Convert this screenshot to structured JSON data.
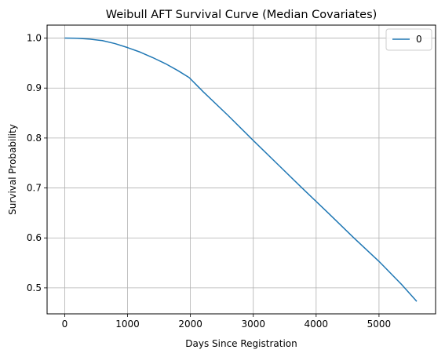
{
  "chart_data": {
    "type": "line",
    "title": "Weibull AFT Survival Curve (Median Covariates)",
    "xlabel": "Days Since Registration",
    "ylabel": "Survival Probability",
    "xlim": [
      -280,
      5900
    ],
    "ylim": [
      0.448,
      1.026
    ],
    "xticks": [
      0,
      1000,
      2000,
      3000,
      4000,
      5000
    ],
    "xtick_labels": [
      "0",
      "1000",
      "2000",
      "3000",
      "4000",
      "5000"
    ],
    "yticks": [
      0.5,
      0.6,
      0.7,
      0.8,
      0.9,
      1.0
    ],
    "ytick_labels": [
      "0.5",
      "0.6",
      "0.7",
      "0.8",
      "0.9",
      "1.0"
    ],
    "grid": true,
    "legend_position": "top-right",
    "series": [
      {
        "name": "0",
        "color": "#1f77b4",
        "x": [
          0,
          200,
          400,
          600,
          800,
          1000,
          1200,
          1400,
          1600,
          1800,
          1980,
          2200,
          2600,
          3000,
          3400,
          3800,
          4200,
          4600,
          5000,
          5350,
          5600
        ],
        "y": [
          1.0,
          0.9997,
          0.998,
          0.995,
          0.989,
          0.981,
          0.972,
          0.961,
          0.949,
          0.935,
          0.921,
          0.893,
          0.845,
          0.795,
          0.746,
          0.697,
          0.649,
          0.6,
          0.553,
          0.508,
          0.473
        ]
      }
    ]
  }
}
